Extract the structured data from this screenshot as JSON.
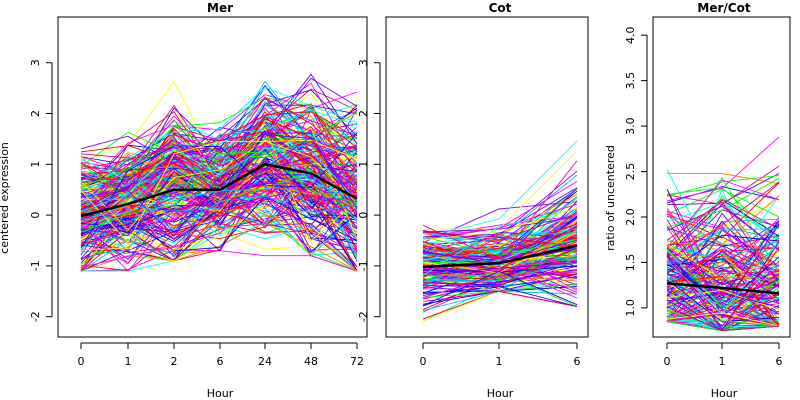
{
  "chart_data": [
    {
      "type": "line",
      "title": "Mer",
      "xlabel": "Hour",
      "ylabel": "centered expression",
      "categories": [
        "0",
        "1",
        "2",
        "6",
        "24",
        "48",
        "72"
      ],
      "yticks": [
        "-2",
        "-1",
        "0",
        "1",
        "2",
        "3"
      ],
      "ylim": [
        -2.4,
        3.9
      ],
      "mean_series": {
        "color": "#000000",
        "values": [
          -0.02,
          0.22,
          0.5,
          0.5,
          1.0,
          0.82,
          0.32
        ]
      },
      "profile_series_count": 250,
      "profile_band": {
        "low": [
          -1.1,
          -1.1,
          -0.9,
          -0.7,
          -0.8,
          -0.8,
          -1.1
        ],
        "high": [
          2.1,
          2.3,
          3.3,
          2.5,
          3.2,
          3.5,
          3.7
        ]
      }
    },
    {
      "type": "line",
      "title": "Cot",
      "xlabel": "Hour",
      "ylabel": "",
      "categories": [
        "0",
        "1",
        "6"
      ],
      "yticks": [
        "-2",
        "-1",
        "0",
        "1",
        "2",
        "3"
      ],
      "ylim": [
        -2.4,
        3.9
      ],
      "mean_series": {
        "color": "#000000",
        "values": [
          -1.02,
          -0.95,
          -0.6
        ]
      },
      "profile_series_count": 200,
      "profile_band": {
        "low": [
          -2.1,
          -1.5,
          -1.8
        ],
        "high": [
          0.0,
          0.45,
          1.55
        ]
      }
    },
    {
      "type": "line",
      "title": "Mer/Cot",
      "xlabel": "Hour",
      "ylabel": "ratio of uncentered",
      "categories": [
        "0",
        "1",
        "6"
      ],
      "yticks": [
        "1.0",
        "1.5",
        "2.0",
        "2.5",
        "3.0",
        "3.5",
        "4.0"
      ],
      "ylim": [
        0.68,
        4.2
      ],
      "mean_series": {
        "color": "#000000",
        "values": [
          1.27,
          1.22,
          1.16
        ]
      },
      "profile_series_count": 200,
      "profile_band": {
        "low": [
          0.85,
          0.75,
          0.8
        ],
        "high": [
          3.82,
          3.98,
          4.1
        ]
      }
    }
  ],
  "colors": [
    "#ff0000",
    "#ff00ff",
    "#0000ff",
    "#00ffff",
    "#00ff00",
    "#ffff00",
    "#ff0080",
    "#8000ff",
    "#00c0ff",
    "#ff8000",
    "#e0007a",
    "#5a00ff"
  ]
}
